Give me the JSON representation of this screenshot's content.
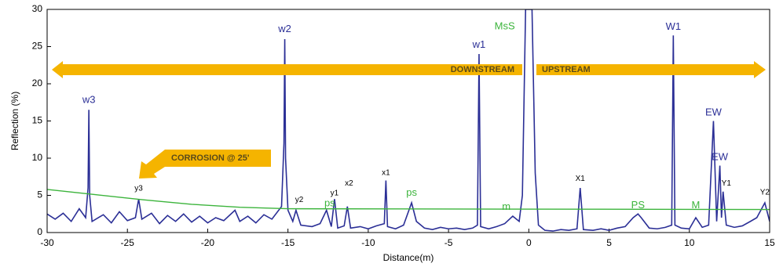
{
  "chart_data": {
    "type": "line",
    "xlabel": "Distance(m)",
    "ylabel": "Reflection (%)",
    "xlim": [
      -30,
      15
    ],
    "ylim": [
      0,
      30
    ],
    "xticks": [
      -30,
      -25,
      -20,
      -15,
      -10,
      -5,
      0,
      5,
      10,
      15
    ],
    "yticks": [
      0,
      5,
      10,
      15,
      20,
      25,
      30
    ],
    "series": [
      {
        "color": "#2b2f96",
        "x": [
          -30,
          -29.5,
          -29,
          -28.5,
          -28,
          -27.6,
          -27.45,
          -27.4,
          -27.35,
          -27.2,
          -26.5,
          -26,
          -25.5,
          -25,
          -24.5,
          -24.3,
          -24.1,
          -23.5,
          -23,
          -22.5,
          -22,
          -21.5,
          -21,
          -20.5,
          -20,
          -19.5,
          -19,
          -18.3,
          -18,
          -17.5,
          -17,
          -16.5,
          -16,
          -15.4,
          -15.25,
          -15.2,
          -15.15,
          -15,
          -14.7,
          -14.5,
          -14.2,
          -13.5,
          -13,
          -12.6,
          -12.3,
          -12.1,
          -11.9,
          -11.5,
          -11.3,
          -11.1,
          -10.5,
          -10,
          -9.5,
          -9,
          -8.9,
          -8.8,
          -8.3,
          -7.8,
          -7.3,
          -7,
          -6.5,
          -6,
          -5.5,
          -5,
          -4.5,
          -4,
          -3.5,
          -3.2,
          -3.1,
          -3,
          -2.5,
          -2,
          -1.5,
          -1,
          -0.6,
          -0.4,
          -0.2,
          0,
          0.2,
          0.4,
          0.6,
          1,
          1.5,
          2,
          2.5,
          3,
          3.2,
          3.4,
          4,
          4.5,
          5,
          5.5,
          6,
          6.5,
          6.8,
          7,
          7.5,
          8,
          8.5,
          8.9,
          9,
          9.1,
          9.5,
          10,
          10.4,
          10.8,
          11.2,
          11.5,
          11.7,
          11.9,
          12,
          12.1,
          12.3,
          12.8,
          13.3,
          13.8,
          14.2,
          14.7,
          15
        ],
        "values": [
          2.5,
          1.8,
          2.6,
          1.5,
          3.2,
          2,
          6,
          16.5,
          5,
          1.5,
          2.4,
          1.3,
          2.8,
          1.6,
          2,
          4.5,
          1.8,
          2.6,
          1.2,
          2.3,
          1.5,
          2.5,
          1.4,
          2.2,
          1.3,
          2,
          1.6,
          3,
          1.5,
          2.2,
          1.3,
          2.4,
          1.8,
          3.5,
          12,
          26,
          10,
          3,
          1.5,
          3,
          1,
          0.8,
          1.2,
          3,
          0.8,
          4.5,
          0.6,
          0.9,
          3.5,
          0.6,
          0.8,
          0.5,
          0.9,
          1.2,
          7,
          0.8,
          0.5,
          1,
          4,
          1.5,
          0.6,
          0.4,
          0.7,
          0.5,
          0.6,
          0.4,
          0.6,
          1,
          24,
          0.8,
          0.5,
          0.8,
          1.2,
          2.2,
          1.5,
          5,
          30,
          30,
          30,
          8,
          1,
          0.3,
          0.2,
          0.4,
          0.3,
          0.5,
          6,
          0.4,
          0.3,
          0.5,
          0.3,
          0.6,
          0.8,
          2,
          2.5,
          2,
          0.6,
          0.5,
          0.7,
          1,
          26.5,
          1,
          0.6,
          0.5,
          2,
          0.7,
          1,
          15,
          1.5,
          9,
          2,
          5.5,
          1,
          0.7,
          0.9,
          1.5,
          2,
          4,
          1.5
        ]
      },
      {
        "color": "#3cb43c",
        "x": [
          -30,
          -27,
          -24,
          -21,
          -18,
          -15,
          15
        ],
        "values": [
          5.8,
          5.1,
          4.4,
          3.8,
          3.4,
          3.2,
          3.1
        ]
      }
    ],
    "annotations": [
      {
        "text": "w3",
        "x": -27.4,
        "y": 17.8,
        "color": "#2b2f96"
      },
      {
        "text": "y3",
        "x": -24.3,
        "y": 5.9,
        "color": "#000000"
      },
      {
        "text": "w2",
        "x": -15.2,
        "y": 27.3,
        "color": "#2b2f96"
      },
      {
        "text": "y2",
        "x": -14.3,
        "y": 4.4,
        "color": "#000000"
      },
      {
        "text": "ps",
        "x": -12.4,
        "y": 3.9,
        "color": "#3cb43c"
      },
      {
        "text": "y1",
        "x": -12.1,
        "y": 5.3,
        "color": "#000000"
      },
      {
        "text": "x2",
        "x": -11.2,
        "y": 6.6,
        "color": "#000000"
      },
      {
        "text": "x1",
        "x": -8.9,
        "y": 8,
        "color": "#000000"
      },
      {
        "text": "ps",
        "x": -7.3,
        "y": 5.3,
        "color": "#3cb43c"
      },
      {
        "text": "w1",
        "x": -3.1,
        "y": 25.2,
        "color": "#2b2f96"
      },
      {
        "text": "MsS",
        "x": -1.5,
        "y": 27.7,
        "color": "#3cb43c"
      },
      {
        "text": "m",
        "x": -1.4,
        "y": 3.4,
        "color": "#3cb43c"
      },
      {
        "text": "X1",
        "x": 3.2,
        "y": 7.2,
        "color": "#000000"
      },
      {
        "text": "PS",
        "x": 6.8,
        "y": 3.6,
        "color": "#3cb43c"
      },
      {
        "text": "W1",
        "x": 9,
        "y": 27.6,
        "color": "#2b2f96"
      },
      {
        "text": "M",
        "x": 10.4,
        "y": 3.6,
        "color": "#3cb43c"
      },
      {
        "text": "EW",
        "x": 11.5,
        "y": 16.1,
        "color": "#2b2f96"
      },
      {
        "text": "EW",
        "x": 11.9,
        "y": 10.1,
        "color": "#2b2f96"
      },
      {
        "text": "Y1",
        "x": 12.3,
        "y": 6.6,
        "color": "#000000"
      },
      {
        "text": "Y2",
        "x": 14.7,
        "y": 5.4,
        "color": "#000000"
      }
    ],
    "arrows": {
      "left": "DOWNSTREAM",
      "right": "UPSTREAM",
      "corrosion": "CORROSION @ 25'"
    }
  }
}
